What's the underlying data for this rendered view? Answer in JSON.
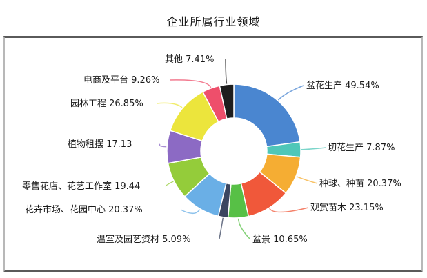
{
  "chart_data": {
    "type": "pie",
    "variant": "donut",
    "title": "企业所属行业领域",
    "categories": [
      "盆花生产",
      "切花生产",
      "种球、种苗",
      "观赏苗木",
      "盆景",
      "温室及园艺资材",
      "花卉市场、花园中心",
      "零售花店、花艺工作室",
      "植物租摆",
      "园林工程",
      "电商及平台",
      "其他"
    ],
    "values": [
      49.54,
      7.87,
      20.37,
      23.15,
      10.65,
      5.09,
      20.37,
      19.44,
      17.13,
      26.85,
      9.26,
      7.41
    ],
    "value_labels": [
      "49.54%",
      "7.87%",
      "20.37%",
      "23.15%",
      "10.65%",
      "5.09%",
      "20.37%",
      "19.44",
      "17.13",
      "26.85%",
      "9.26%",
      "7.41%"
    ],
    "colors": [
      "#4a86d0",
      "#4fc7b8",
      "#f5ad33",
      "#f0583a",
      "#57c046",
      "#3b4660",
      "#6aafe6",
      "#94cc3a",
      "#8c6ac4",
      "#ece53c",
      "#ee4f6b",
      "#1e1e1e"
    ],
    "legend": "none",
    "labels_position": "outside_with_leader_lines"
  },
  "header": {
    "title": "企业所属行业领域"
  },
  "labels": [
    {
      "text": "盆花生产 49.54%"
    },
    {
      "text": "切花生产 7.87%"
    },
    {
      "text": "种球、种苗 20.37%"
    },
    {
      "text": "观赏苗木 23.15%"
    },
    {
      "text": "盆景 10.65%"
    },
    {
      "text": "温室及园艺资材 5.09%"
    },
    {
      "text": "花卉市场、花园中心 20.37%"
    },
    {
      "text": "零售花店、花艺工作室 19.44"
    },
    {
      "text": "植物租摆 17.13"
    },
    {
      "text": "园林工程 26.85%"
    },
    {
      "text": "电商及平台 9.26%"
    },
    {
      "text": "其他 7.41%"
    }
  ]
}
